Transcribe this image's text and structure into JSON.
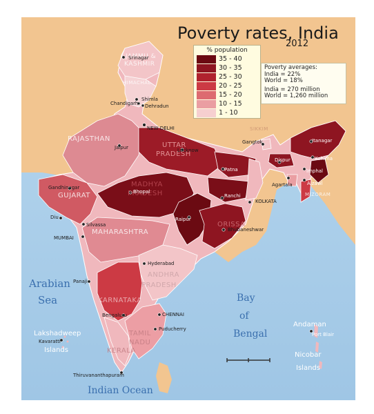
{
  "title": "Poverty rates, India",
  "year": "2012",
  "legend": {
    "title": "% population",
    "classes": [
      {
        "label": "35 - 40",
        "color": "#6b0a12"
      },
      {
        "label": "30 - 35",
        "color": "#8e1521"
      },
      {
        "label": "25 - 30",
        "color": "#b0222e"
      },
      {
        "label": "20 - 25",
        "color": "#cc3a44"
      },
      {
        "label": "15 - 20",
        "color": "#dd6a70"
      },
      {
        "label": "10 - 15",
        "color": "#ea9ea2"
      },
      {
        "label": "1 - 10",
        "color": "#f6cfd0"
      }
    ]
  },
  "averages": {
    "heading": "Poverty averages:",
    "india_pct": "India = 22%",
    "world_pct": "World = 18%",
    "india_count": "India  =   270 million",
    "world_count": "World = 1,260 million"
  },
  "water_labels": {
    "arabian": "Arabian",
    "sea": "Sea",
    "bay": "Bay",
    "of": "of",
    "bengal": "Bengal",
    "indian_ocean": "Indian Ocean"
  },
  "island_labels": {
    "andaman": "Andaman",
    "nicobar": "Nicobar",
    "nicobar_islands": "Islands",
    "lakshadweep": "Lakshadweep",
    "lakshadweep_islands": "Islands"
  },
  "state_labels": {
    "jammu": "JAMMU &",
    "kashmir": "KASHMIR",
    "rajasthan": "RAJASTHAN",
    "uttar": "UTTAR",
    "pradesh_up": "PRADESH",
    "madhya": "MADHYA",
    "pradesh_mp": "PRADESH",
    "gujarat": "GUJARAT",
    "maharashtra": "MAHARASHTRA",
    "andhra": "ANDHRA",
    "pradesh_ap": "PRADESH",
    "karnataka": "KARNATAKA",
    "tamil": "TAMIL",
    "nadu": "NADU",
    "kerala": "KERALA",
    "orissa": "ORISSA",
    "sikkim": "SIKKIM",
    "himachal": "HIMACHAL",
    "mizoram": "MIZORAM"
  },
  "cities": {
    "srinagar": "Srinagar",
    "chandigarh": "Chandigarh",
    "shimla": "Shimla",
    "dehradun": "Dehradun",
    "new_delhi": "NEW DELHI",
    "jaipur": "Jaipur",
    "lucknow": "Lucknow",
    "gandhinagar": "Gandhinagar",
    "bhopal": "Bhopal",
    "patna": "Patna",
    "gangtok": "Gangtok",
    "dispur": "Dispur",
    "itanagar": "Itanagar",
    "kohima": "Kohima",
    "imphal": "Imphal",
    "aizawl": "Aizawl",
    "agartala": "Agartala",
    "kolkata": "KOLKATA",
    "ranchi": "Ranchi",
    "raipur": "Raipur",
    "bhubaneshwar": "Bhubaneshwar",
    "diu": "Diu",
    "silvassa": "Silvassa",
    "mumbai": "MUMBAI",
    "hyderabad": "Hyderabad",
    "panaji": "Panaji",
    "bengaluru": "Bengaluru",
    "chennai": "CHENNAI",
    "puducherry": "Puducherry",
    "kavaratti": "Kavaratti",
    "thiruvananthapuram": "Thiruvananthapuram",
    "port_blair": "Port Blair"
  },
  "colors": {
    "sea": "#a8cde8",
    "land_outside": "#f2c590",
    "border": "#ffffff"
  }
}
